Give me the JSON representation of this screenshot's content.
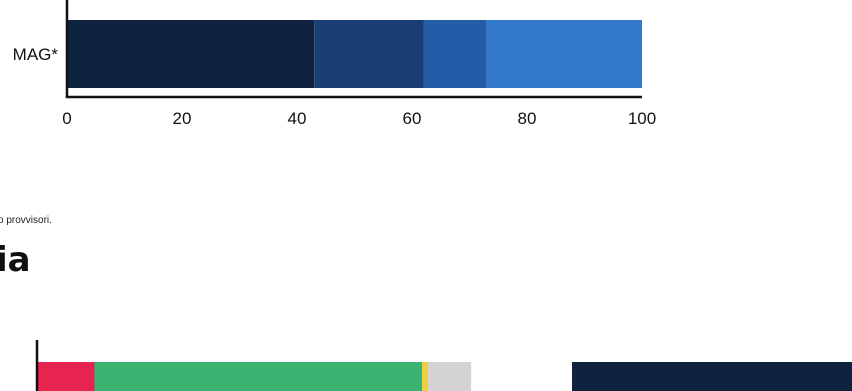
{
  "chart_data": [
    {
      "type": "bar",
      "orientation": "horizontal",
      "stacked": true,
      "categories": [
        "MAG*"
      ],
      "series": [
        {
          "values": [
            43
          ],
          "color": "#0f2340"
        },
        {
          "values": [
            19
          ],
          "color": "#1b3f75"
        },
        {
          "values": [
            11
          ],
          "color": "#255ca8"
        },
        {
          "values": [
            27
          ],
          "color": "#3279cc"
        }
      ],
      "xlim": [
        0,
        100
      ],
      "xticks": [
        "0",
        "20",
        "40",
        "60",
        "80",
        "100"
      ],
      "grid": false
    },
    {
      "type": "bar",
      "orientation": "horizontal",
      "stacked": true,
      "categories": [
        ""
      ],
      "series": [
        {
          "values": [
            10
          ],
          "color": "#e6244f"
        },
        {
          "values": [
            57
          ],
          "color": "#3cb371"
        },
        {
          "values": [
            1
          ],
          "color": "#f2cf3c"
        },
        {
          "values": [
            7.5
          ],
          "color": "#d4d4d4"
        }
      ],
      "grid": false
    }
  ],
  "right_block": {
    "color": "#0f2340"
  },
  "note": "o provvisori.",
  "section_title": "ia"
}
